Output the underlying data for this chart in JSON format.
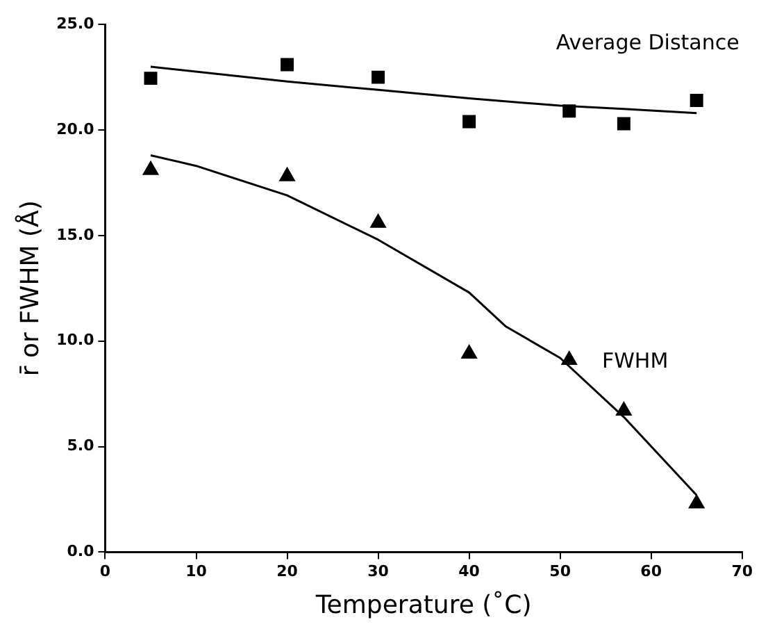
{
  "chart_data": {
    "type": "scatter",
    "xlabel": "Temperature (˚C)",
    "ylabel": "r̄ or FWHM (Å)",
    "xlim": [
      0,
      70
    ],
    "xticks": [
      0,
      10,
      20,
      30,
      40,
      50,
      60,
      70
    ],
    "ylim": [
      0,
      25
    ],
    "yticks": [
      {
        "value": 0,
        "label": "0.0"
      },
      {
        "value": 5,
        "label": "5.0"
      },
      {
        "value": 10,
        "label": "10.0"
      },
      {
        "value": 15,
        "label": "15.0"
      },
      {
        "value": 20,
        "label": "20.0"
      },
      {
        "value": 25,
        "label": "25.0"
      }
    ],
    "grid": false,
    "legend": false,
    "series": [
      {
        "marker": "square",
        "color": "#000000",
        "x": [
          5,
          20,
          30,
          40,
          51,
          57,
          65
        ],
        "values": [
          22.45,
          23.1,
          22.5,
          20.4,
          20.9,
          20.3,
          21.4
        ]
      },
      {
        "marker": "triangle",
        "color": "#000000",
        "x": [
          5,
          20,
          30,
          40,
          51,
          57,
          65
        ],
        "values": [
          18.1,
          17.8,
          15.6,
          9.4,
          9.1,
          6.7,
          2.3
        ]
      },
      {
        "type": "line",
        "marker": "none",
        "color": "#000000",
        "x": [
          5,
          20,
          30,
          40,
          50,
          57,
          65
        ],
        "values": [
          23.0,
          22.3,
          21.9,
          21.5,
          21.15,
          21.0,
          20.8
        ]
      },
      {
        "type": "line",
        "marker": "none",
        "color": "#000000",
        "x": [
          5,
          10,
          20,
          30,
          40,
          44,
          50,
          57,
          65
        ],
        "values": [
          18.8,
          18.3,
          16.9,
          14.8,
          12.3,
          10.7,
          9.2,
          6.4,
          2.7
        ]
      }
    ],
    "annotations": [
      "Average Distance",
      "FWHM"
    ]
  }
}
